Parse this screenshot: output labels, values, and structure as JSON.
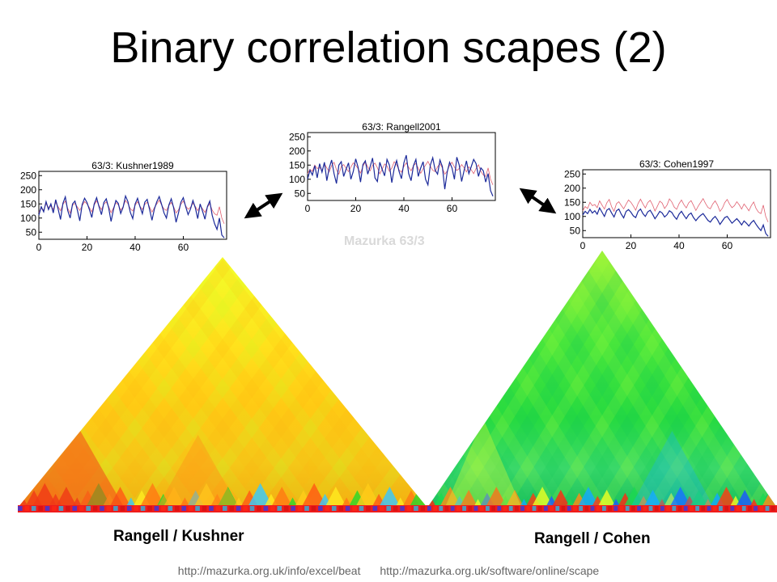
{
  "title": "Binary correlation scapes (2)",
  "piece_label": "Mazurka 63/3",
  "colors": {
    "series_reference": "#e06070",
    "series_performer": "#1c2a9a",
    "arrow": "#000000"
  },
  "chart_data": [
    {
      "type": "line",
      "title": "63/3: Kushner1989",
      "xlabel": "",
      "ylabel": "",
      "xlim": [
        0,
        78
      ],
      "ylim": [
        25,
        265
      ],
      "xticks": [
        "0",
        "20",
        "40",
        "60"
      ],
      "yticks": [
        "50",
        "100",
        "150",
        "200",
        "250"
      ],
      "series": [
        {
          "name": "",
          "color": "#e06070",
          "values": [
            120,
            135,
            128,
            150,
            138,
            142,
            131,
            155,
            140,
            126,
            148,
            160,
            134,
            118,
            145,
            152,
            139,
            127,
            143,
            158,
            150,
            137,
            122,
            146,
            161,
            144,
            130,
            149,
            157,
            141,
            119,
            136,
            154,
            147,
            128,
            140,
            162,
            151,
            133,
            125,
            145,
            158,
            142,
            130,
            148,
            156,
            139,
            121,
            137,
            150,
            163,
            146,
            132,
            127,
            144,
            155,
            140,
            118,
            129,
            149,
            160,
            143,
            131,
            138,
            152,
            141,
            126,
            144,
            133,
            120,
            138,
            151,
            128,
            115,
            110,
            140,
            100,
            80
          ]
        },
        {
          "name": "",
          "color": "#1c2a9a",
          "values": [
            110,
            140,
            122,
            158,
            130,
            150,
            118,
            165,
            132,
            95,
            152,
            175,
            126,
            100,
            150,
            160,
            128,
            90,
            148,
            170,
            155,
            130,
            102,
            150,
            172,
            140,
            112,
            155,
            168,
            136,
            88,
            130,
            162,
            152,
            116,
            138,
            178,
            158,
            120,
            98,
            150,
            170,
            140,
            115,
            156,
            166,
            130,
            92,
            132,
            158,
            176,
            148,
            118,
            100,
            146,
            168,
            136,
            85,
            118,
            156,
            172,
            140,
            112,
            132,
            162,
            136,
            98,
            150,
            124,
            96,
            140,
            160,
            110,
            80,
            60,
            100,
            40,
            30
          ]
        }
      ]
    },
    {
      "type": "line",
      "title": "63/3: Rangell2001",
      "xlabel": "",
      "ylabel": "",
      "xlim": [
        0,
        78
      ],
      "ylim": [
        25,
        265
      ],
      "xticks": [
        "0",
        "20",
        "40",
        "60"
      ],
      "yticks": [
        "50",
        "100",
        "150",
        "200",
        "250"
      ],
      "series": [
        {
          "name": "",
          "color": "#e06070",
          "values": [
            120,
            135,
            128,
            150,
            138,
            142,
            131,
            155,
            140,
            126,
            148,
            160,
            134,
            118,
            145,
            152,
            139,
            127,
            143,
            158,
            150,
            137,
            122,
            146,
            161,
            144,
            130,
            149,
            157,
            141,
            119,
            136,
            154,
            147,
            128,
            140,
            162,
            151,
            133,
            125,
            145,
            158,
            142,
            130,
            148,
            156,
            139,
            121,
            137,
            150,
            163,
            146,
            132,
            127,
            144,
            155,
            140,
            118,
            129,
            149,
            160,
            143,
            131,
            138,
            152,
            141,
            126,
            144,
            133,
            120,
            138,
            151,
            128,
            115,
            110,
            140,
            100,
            80
          ]
        },
        {
          "name": "",
          "color": "#1c2a9a",
          "values": [
            100,
            132,
            115,
            148,
            105,
            155,
            125,
            160,
            95,
            140,
            168,
            120,
            85,
            150,
            162,
            110,
            135,
            158,
            100,
            128,
            172,
            142,
            90,
            152,
            165,
            118,
            145,
            175,
            105,
            92,
            160,
            135,
            112,
            170,
            150,
            88,
            138,
            166,
            128,
            102,
            158,
            185,
            120,
            95,
            148,
            170,
            110,
            140,
            162,
            100,
            80,
            150,
            176,
            132,
            118,
            168,
            145,
            65,
            125,
            160,
            140,
            100,
            178,
            150,
            92,
            130,
            165,
            120,
            145,
            170,
            155,
            110,
            140,
            130,
            90,
            120,
            60,
            40
          ]
        }
      ]
    },
    {
      "type": "line",
      "title": "63/3: Cohen1997",
      "xlabel": "",
      "ylabel": "",
      "xlim": [
        0,
        78
      ],
      "ylim": [
        25,
        265
      ],
      "xticks": [
        "0",
        "20",
        "40",
        "60"
      ],
      "yticks": [
        "50",
        "100",
        "150",
        "200",
        "250"
      ],
      "series": [
        {
          "name": "",
          "color": "#e06070",
          "values": [
            120,
            135,
            128,
            150,
            138,
            142,
            131,
            155,
            140,
            126,
            148,
            160,
            134,
            118,
            145,
            152,
            139,
            127,
            143,
            158,
            150,
            137,
            122,
            146,
            161,
            144,
            130,
            149,
            157,
            141,
            119,
            136,
            154,
            147,
            128,
            140,
            162,
            151,
            133,
            125,
            145,
            158,
            142,
            130,
            148,
            156,
            139,
            121,
            137,
            150,
            163,
            146,
            132,
            127,
            144,
            155,
            140,
            118,
            129,
            149,
            160,
            143,
            131,
            138,
            152,
            141,
            126,
            144,
            133,
            120,
            138,
            151,
            128,
            115,
            110,
            140,
            100,
            80
          ]
        },
        {
          "name": "",
          "color": "#1c2a9a",
          "values": [
            105,
            118,
            110,
            125,
            112,
            120,
            108,
            130,
            115,
            100,
            122,
            128,
            112,
            98,
            120,
            126,
            108,
            95,
            118,
            124,
            115,
            102,
            96,
            118,
            126,
            110,
            100,
            116,
            122,
            108,
            92,
            104,
            118,
            112,
            98,
            106,
            120,
            114,
            100,
            90,
            108,
            118,
            104,
            92,
            106,
            112,
            96,
            85,
            96,
            104,
            110,
            98,
            86,
            80,
            92,
            100,
            88,
            72,
            84,
            96,
            100,
            88,
            76,
            84,
            92,
            82,
            70,
            84,
            76,
            66,
            78,
            86,
            72,
            60,
            50,
            70,
            40,
            30
          ]
        }
      ]
    }
  ],
  "scapes": [
    {
      "caption": "Rangell / Kushner",
      "theme": "yellow"
    },
    {
      "caption": "Rangell / Cohen",
      "theme": "green"
    }
  ],
  "urls": [
    "http://mazurka.org.uk/info/excel/beat",
    "http://mazurka.org.uk/software/online/scape"
  ]
}
